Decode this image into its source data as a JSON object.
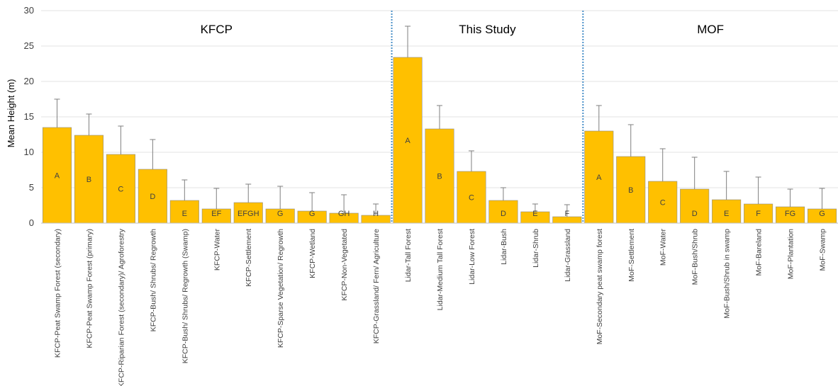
{
  "chart_data": {
    "type": "bar",
    "title": "",
    "xlabel": "",
    "ylabel": "Mean Height (m)",
    "ylim": [
      0,
      30
    ],
    "yticks": [
      0,
      5,
      10,
      15,
      20,
      25,
      30
    ],
    "grid": true,
    "bar_color": "#FFC000",
    "bar_edge_color": "#8c8c8c",
    "divider_color": "#4a90c8",
    "groups": [
      {
        "name": "KFCP",
        "from": 0,
        "to": 10
      },
      {
        "name": "This Study",
        "from": 11,
        "to": 16
      },
      {
        "name": "MOF",
        "from": 17,
        "to": 24
      }
    ],
    "categories": [
      "KFCP-Peat Swamp Forest (secondary)",
      "KFCP-Peat Swamp Forest (primary)",
      "KFCP-Riparian Forest (secondary)/ Agroforestry",
      "KFCP-Bush/ Shrubs/ Regrowth",
      "KFCP-Bush/ Shrubs/ Regrowth (Swamp)",
      "KFCP-Water",
      "KFCP-Settlement",
      "KFCP-Sparse Vegetation/ Regrowth",
      "KFCP-Wetland",
      "KFCP-Non-Vegetated",
      "KFCP-Grassland/ Fern/ Agriculture",
      "Lidar-Tall Forest",
      "Lidar-Medium Tall Forest",
      "Lidar-Low Forest",
      "Lidar-Bush",
      "Lidar-Shrub",
      "Lidar-Grassland",
      "MoF-Secondary peat swamp forest",
      "MoF-Settlement",
      "MoF-Water",
      "MoF-Bush/Shrub",
      "MoF-Bush/Shrub in swamp",
      "MoF-Bareland",
      "MoF-Plantation",
      "MoF-Swamp"
    ],
    "values": [
      13.5,
      12.4,
      9.7,
      7.6,
      3.2,
      2.0,
      2.9,
      2.0,
      1.7,
      1.4,
      1.1,
      23.4,
      13.3,
      7.3,
      3.2,
      1.6,
      0.9,
      13.0,
      9.4,
      5.9,
      4.8,
      3.3,
      2.7,
      2.3,
      2.0
    ],
    "error_upper": [
      17.5,
      15.4,
      13.7,
      11.8,
      6.1,
      4.9,
      5.5,
      5.2,
      4.3,
      4.0,
      2.7,
      27.8,
      16.6,
      10.2,
      5.0,
      2.7,
      2.6,
      16.6,
      13.9,
      10.5,
      9.3,
      7.3,
      6.5,
      4.8,
      4.9
    ],
    "letters": [
      "A",
      "B",
      "C",
      "D",
      "E",
      "EF",
      "EFGH",
      "G",
      "G",
      "GH",
      "H",
      "A",
      "B",
      "C",
      "D",
      "E",
      "F",
      "A",
      "B",
      "C",
      "D",
      "E",
      "F",
      "FG",
      "G"
    ]
  }
}
